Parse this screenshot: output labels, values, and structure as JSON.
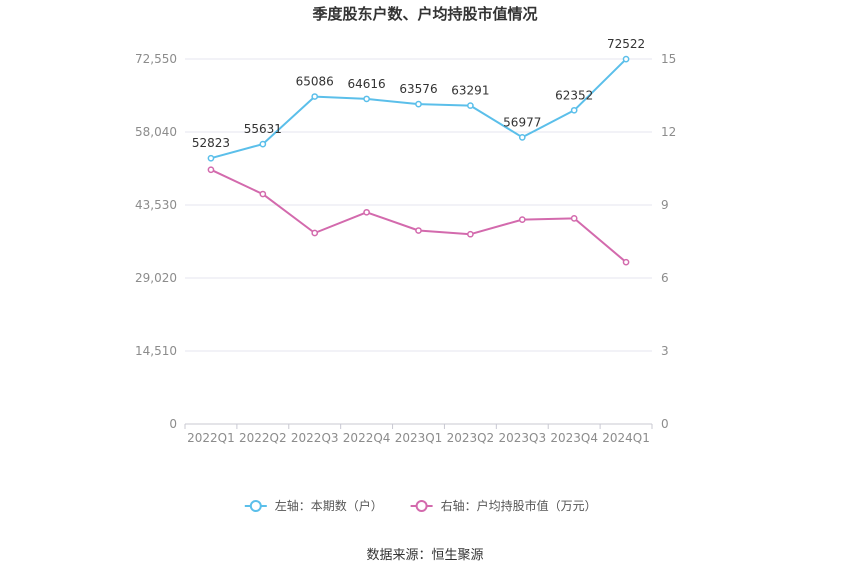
{
  "chart_data": {
    "type": "line",
    "title": "季度股东户数、户均持股市值情况",
    "categories": [
      "2022Q1",
      "2022Q2",
      "2022Q3",
      "2022Q4",
      "2023Q1",
      "2023Q2",
      "2023Q3",
      "2023Q4",
      "2024Q1"
    ],
    "y_left": {
      "ticks": [
        "0",
        "14,510",
        "29,020",
        "43,530",
        "58,040",
        "72,550"
      ],
      "ylim": [
        0,
        72550
      ]
    },
    "y_right": {
      "ticks": [
        "0",
        "3",
        "6",
        "9",
        "12",
        "15"
      ],
      "ylim": [
        0,
        15
      ]
    },
    "series": [
      {
        "name": "左轴：本期数（户）",
        "axis": "left",
        "color": "#5bbfea",
        "values": [
          52823,
          55631,
          65086,
          64616,
          63576,
          63291,
          56977,
          62352,
          72522
        ],
        "labels": [
          "52823",
          "55631",
          "65086",
          "64616",
          "63576",
          "63291",
          "56977",
          "62352",
          "72522"
        ]
      },
      {
        "name": "右轴：户均持股市值（万元）",
        "axis": "right",
        "color": "#d36aad",
        "values": [
          10.45,
          9.45,
          7.85,
          8.7,
          7.95,
          7.8,
          8.4,
          8.45,
          6.65
        ]
      }
    ],
    "legend_position": "bottom-center",
    "grid": true,
    "source": "数据来源：恒生聚源"
  }
}
